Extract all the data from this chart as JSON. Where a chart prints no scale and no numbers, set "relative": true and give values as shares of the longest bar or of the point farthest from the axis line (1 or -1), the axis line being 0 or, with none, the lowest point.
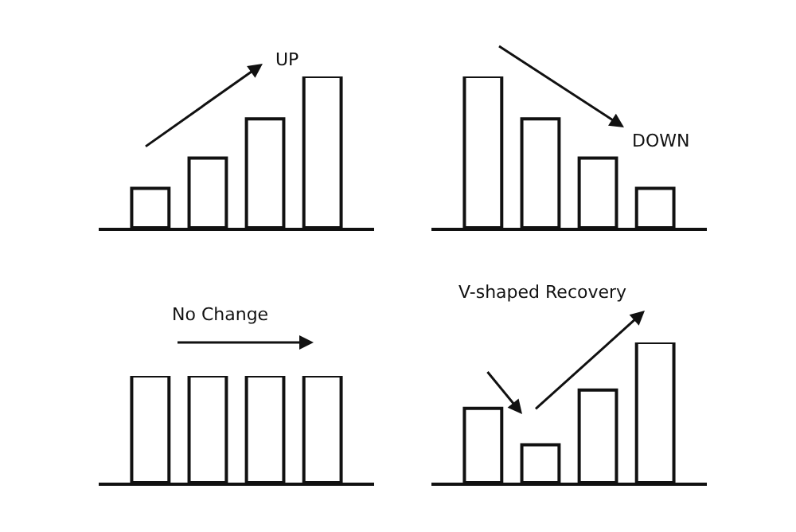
{
  "chart_data": [
    {
      "type": "bar",
      "relative": true,
      "categories": [
        null,
        null,
        null,
        null
      ],
      "values": [
        0.26,
        0.46,
        0.72,
        1
      ],
      "color": "#ffffff",
      "legend": false,
      "annotations": [
        "UP"
      ]
    },
    {
      "type": "bar",
      "relative": true,
      "categories": [
        null,
        null,
        null,
        null
      ],
      "values": [
        1,
        0.72,
        0.46,
        0.26
      ],
      "color": "#ffffff",
      "legend": false,
      "annotations": [
        "DOWN"
      ]
    },
    {
      "type": "bar",
      "relative": true,
      "categories": [
        null,
        null,
        null,
        null
      ],
      "values": [
        1,
        1,
        1,
        1
      ],
      "color": "#ffffff",
      "legend": false,
      "annotations": [
        "No Change"
      ]
    },
    {
      "type": "bar",
      "relative": true,
      "categories": [
        null,
        null,
        null,
        null
      ],
      "values": [
        0.53,
        0.27,
        0.66,
        1
      ],
      "color": "#ffffff",
      "legend": false,
      "annotations": [
        "V-shaped Recovery"
      ]
    }
  ]
}
